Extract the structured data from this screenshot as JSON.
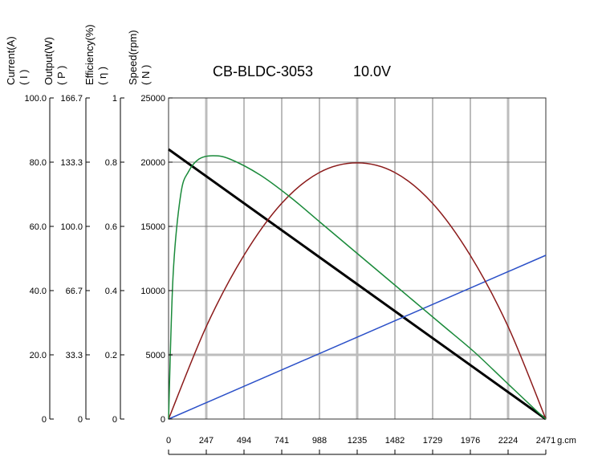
{
  "chart_data": {
    "type": "line",
    "title": "CB-BLDC-3053",
    "voltage": "10.0V",
    "xunit": "g.cm",
    "xticks": [
      "0",
      "247",
      "494",
      "741",
      "988",
      "1235",
      "1482",
      "1729",
      "1976",
      "2224",
      "2471"
    ],
    "xlim": [
      0,
      2471
    ],
    "grid": true,
    "axes": [
      {
        "label": "Current(A)",
        "symbol": "( I )",
        "ticks": [
          "0",
          "20.0",
          "40.0",
          "60.0",
          "80.0",
          "100.0"
        ],
        "ylim": [
          0,
          100
        ]
      },
      {
        "label": "Output(W)",
        "symbol": "( P )",
        "ticks": [
          "0",
          "33.3",
          "66.7",
          "100.0",
          "133.3",
          "166.7"
        ],
        "ylim": [
          0,
          166.7
        ]
      },
      {
        "label": "Efficiency(%)",
        "symbol": "( η )",
        "ticks": [
          "0",
          "0.2",
          "0.4",
          "0.6",
          "0.8",
          "1"
        ],
        "ylim": [
          0,
          1
        ]
      },
      {
        "label": "Speed(rpm)",
        "symbol": "( N )",
        "ticks": [
          "0",
          "5000",
          "10000",
          "15000",
          "20000",
          "25000"
        ],
        "ylim": [
          0,
          25000
        ]
      }
    ],
    "series": [
      {
        "axis": "Speed(rpm)",
        "color": "#000000",
        "x": [
          0,
          2471
        ],
        "y": [
          21000,
          0
        ]
      },
      {
        "axis": "Current(A)",
        "color": "#2b50c8",
        "x": [
          0,
          2471
        ],
        "y": [
          0,
          51
        ]
      },
      {
        "axis": "Output(W)",
        "color": "#8b1a1a",
        "x": [
          0,
          247,
          494,
          741,
          988,
          1235,
          1482,
          1729,
          1976,
          2224,
          2471
        ],
        "y": [
          0,
          48,
          85,
          112,
          128,
          133,
          128,
          112,
          85,
          48,
          0
        ]
      },
      {
        "axis": "Efficiency(%)",
        "color": "#1a8a3a",
        "x": [
          0,
          30,
          80,
          130,
          200,
          290,
          400,
          600,
          800,
          1000,
          1200,
          1400,
          1600,
          1800,
          2000,
          2200,
          2400,
          2471
        ],
        "y": [
          0,
          0.45,
          0.7,
          0.77,
          0.81,
          0.82,
          0.81,
          0.76,
          0.69,
          0.61,
          0.53,
          0.45,
          0.37,
          0.29,
          0.21,
          0.12,
          0.03,
          0
        ]
      }
    ]
  }
}
